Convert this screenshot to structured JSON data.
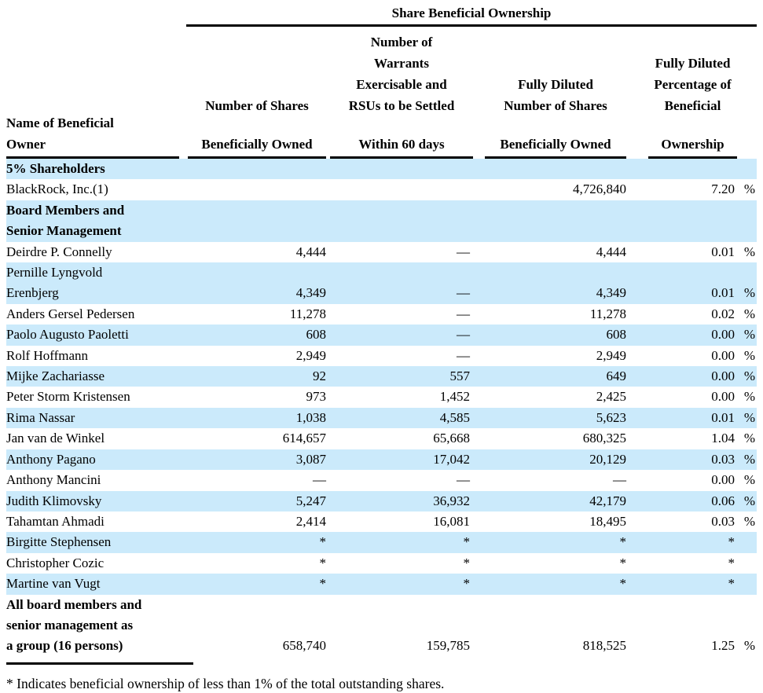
{
  "colors": {
    "row_shade": "#cbeafb",
    "text": "#000000",
    "rule": "#000000"
  },
  "table": {
    "group_header": "Share Beneficial Ownership",
    "columns": {
      "name": [
        "Name of Beneficial",
        "Owner"
      ],
      "shares": [
        "Number of Shares",
        "Beneficially Owned"
      ],
      "warrants": [
        "Number of",
        "Warrants",
        "Exercisable and",
        "RSUs to be Settled",
        "Within 60 days"
      ],
      "diluted": [
        "Fully Diluted",
        "Number of Shares",
        "Beneficially Owned"
      ],
      "pct": [
        "Fully Diluted",
        "Percentage of",
        "Beneficial",
        "Ownership"
      ]
    },
    "rows": [
      {
        "type": "section",
        "name": [
          "5% Shareholders"
        ],
        "shade": true
      },
      {
        "type": "data",
        "name": [
          "BlackRock, Inc.(1)"
        ],
        "shares": "",
        "warrants": "",
        "diluted": "4,726,840",
        "pct": "7.20",
        "pct_suffix": "%",
        "shade": false
      },
      {
        "type": "section",
        "name": [
          "Board Members and",
          "Senior Management"
        ],
        "shade": true
      },
      {
        "type": "data",
        "name": [
          "Deirdre P. Connelly"
        ],
        "shares": "4,444",
        "warrants": "—",
        "diluted": "4,444",
        "pct": "0.01",
        "pct_suffix": "%",
        "shade": false
      },
      {
        "type": "data",
        "name": [
          "Pernille Lyngvold",
          "Erenbjerg"
        ],
        "shares": "4,349",
        "warrants": "—",
        "diluted": "4,349",
        "pct": "0.01",
        "pct_suffix": "%",
        "shade": true
      },
      {
        "type": "data",
        "name": [
          "Anders Gersel Pedersen"
        ],
        "shares": "11,278",
        "warrants": "—",
        "diluted": "11,278",
        "pct": "0.02",
        "pct_suffix": "%",
        "shade": false
      },
      {
        "type": "data",
        "name": [
          "Paolo Augusto Paoletti"
        ],
        "shares": "608",
        "warrants": "—",
        "diluted": "608",
        "pct": "0.00",
        "pct_suffix": "%",
        "shade": true
      },
      {
        "type": "data",
        "name": [
          "Rolf Hoffmann"
        ],
        "shares": "2,949",
        "warrants": "—",
        "diluted": "2,949",
        "pct": "0.00",
        "pct_suffix": "%",
        "shade": false
      },
      {
        "type": "data",
        "name": [
          "Mijke Zachariasse"
        ],
        "shares": "92",
        "warrants": "557",
        "diluted": "649",
        "pct": "0.00",
        "pct_suffix": "%",
        "shade": true
      },
      {
        "type": "data",
        "name": [
          "Peter Storm Kristensen"
        ],
        "shares": "973",
        "warrants": "1,452",
        "diluted": "2,425",
        "pct": "0.00",
        "pct_suffix": "%",
        "shade": false
      },
      {
        "type": "data",
        "name": [
          "Rima Nassar"
        ],
        "shares": "1,038",
        "warrants": "4,585",
        "diluted": "5,623",
        "pct": "0.01",
        "pct_suffix": "%",
        "shade": true
      },
      {
        "type": "data",
        "name": [
          "Jan van de Winkel"
        ],
        "shares": "614,657",
        "warrants": "65,668",
        "diluted": "680,325",
        "pct": "1.04",
        "pct_suffix": "%",
        "shade": false
      },
      {
        "type": "data",
        "name": [
          "Anthony Pagano"
        ],
        "shares": "3,087",
        "warrants": "17,042",
        "diluted": "20,129",
        "pct": "0.03",
        "pct_suffix": "%",
        "shade": true
      },
      {
        "type": "data",
        "name": [
          "Anthony Mancini"
        ],
        "shares": "—",
        "warrants": "—",
        "diluted": "—",
        "pct": "0.00",
        "pct_suffix": "%",
        "shade": false
      },
      {
        "type": "data",
        "name": [
          "Judith Klimovsky"
        ],
        "shares": "5,247",
        "warrants": "36,932",
        "diluted": "42,179",
        "pct": "0.06",
        "pct_suffix": "%",
        "shade": true
      },
      {
        "type": "data",
        "name": [
          "Tahamtan Ahmadi"
        ],
        "shares": "2,414",
        "warrants": "16,081",
        "diluted": "18,495",
        "pct": "0.03",
        "pct_suffix": "%",
        "shade": false
      },
      {
        "type": "data",
        "name": [
          "Birgitte Stephensen"
        ],
        "shares": "*",
        "warrants": "*",
        "diluted": "*",
        "pct": "*",
        "pct_suffix": "",
        "shade": true
      },
      {
        "type": "data",
        "name": [
          "Christopher Cozic"
        ],
        "shares": "*",
        "warrants": "*",
        "diluted": "*",
        "pct": "*",
        "pct_suffix": "",
        "shade": false
      },
      {
        "type": "data",
        "name": [
          "Martine van Vugt"
        ],
        "shares": "*",
        "warrants": "*",
        "diluted": "*",
        "pct": "*",
        "pct_suffix": "",
        "shade": true
      },
      {
        "type": "data",
        "bold": true,
        "name": [
          "All board members and",
          "senior management as",
          "a group (16 persons)"
        ],
        "shares": "658,740",
        "warrants": "159,785",
        "diluted": "818,525",
        "pct": "1.25",
        "pct_suffix": "%",
        "shade": false
      }
    ]
  },
  "footnote": "* Indicates beneficial ownership of less than 1% of the total outstanding shares."
}
